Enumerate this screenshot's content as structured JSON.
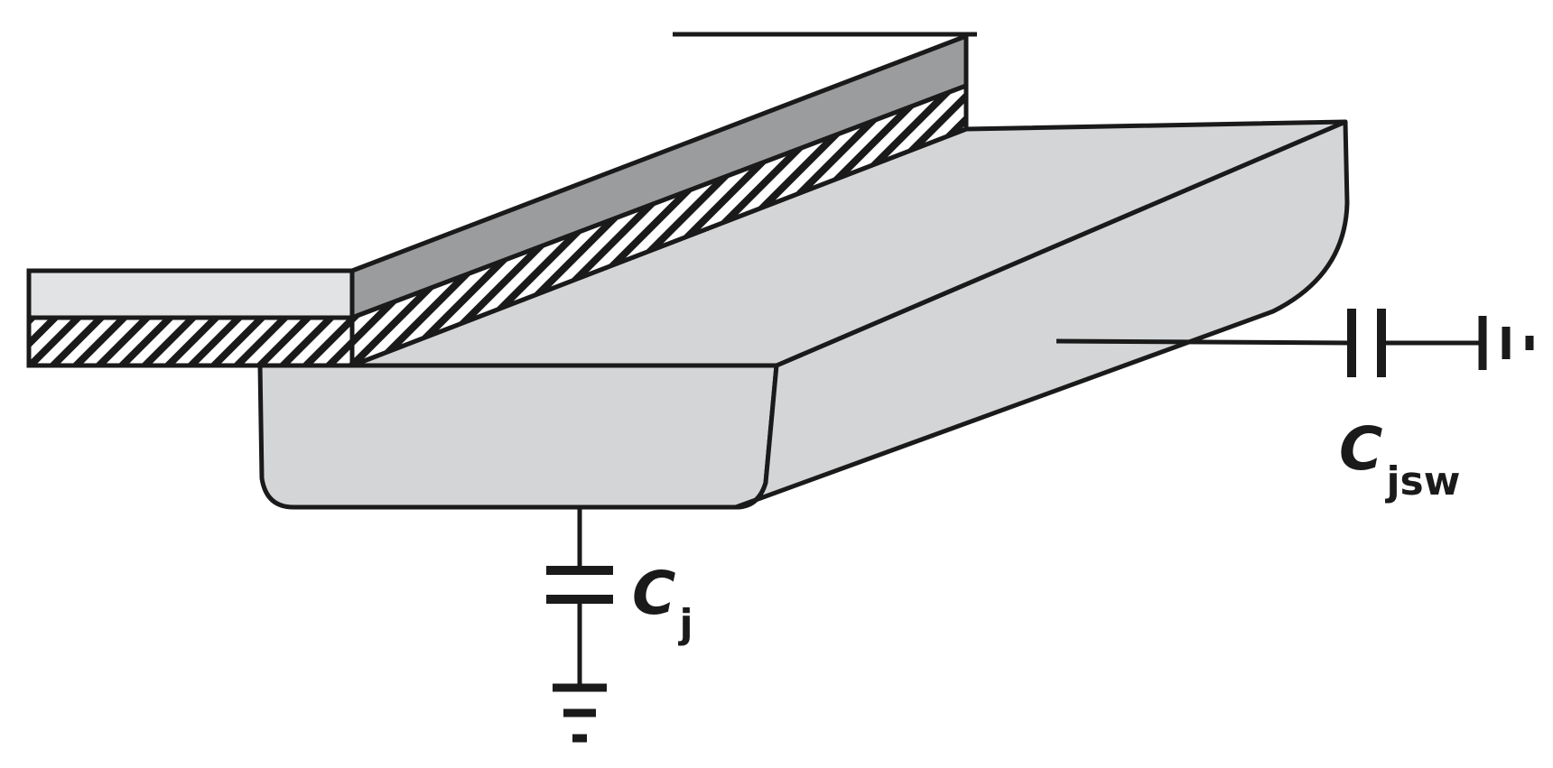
{
  "labels": {
    "bottom_cap": {
      "main": "C",
      "sub": "j"
    },
    "sidewall_cap": {
      "main": "C",
      "sub": "jsw"
    }
  },
  "colors": {
    "outline": "#1a1a1a",
    "diffusion_fill": "#d4d5d7",
    "gate_top_fill": "#9b9c9e",
    "poly_fill": "#e2e3e4",
    "oxide_hatch": "#1a1a1a",
    "background": "#ffffff"
  }
}
